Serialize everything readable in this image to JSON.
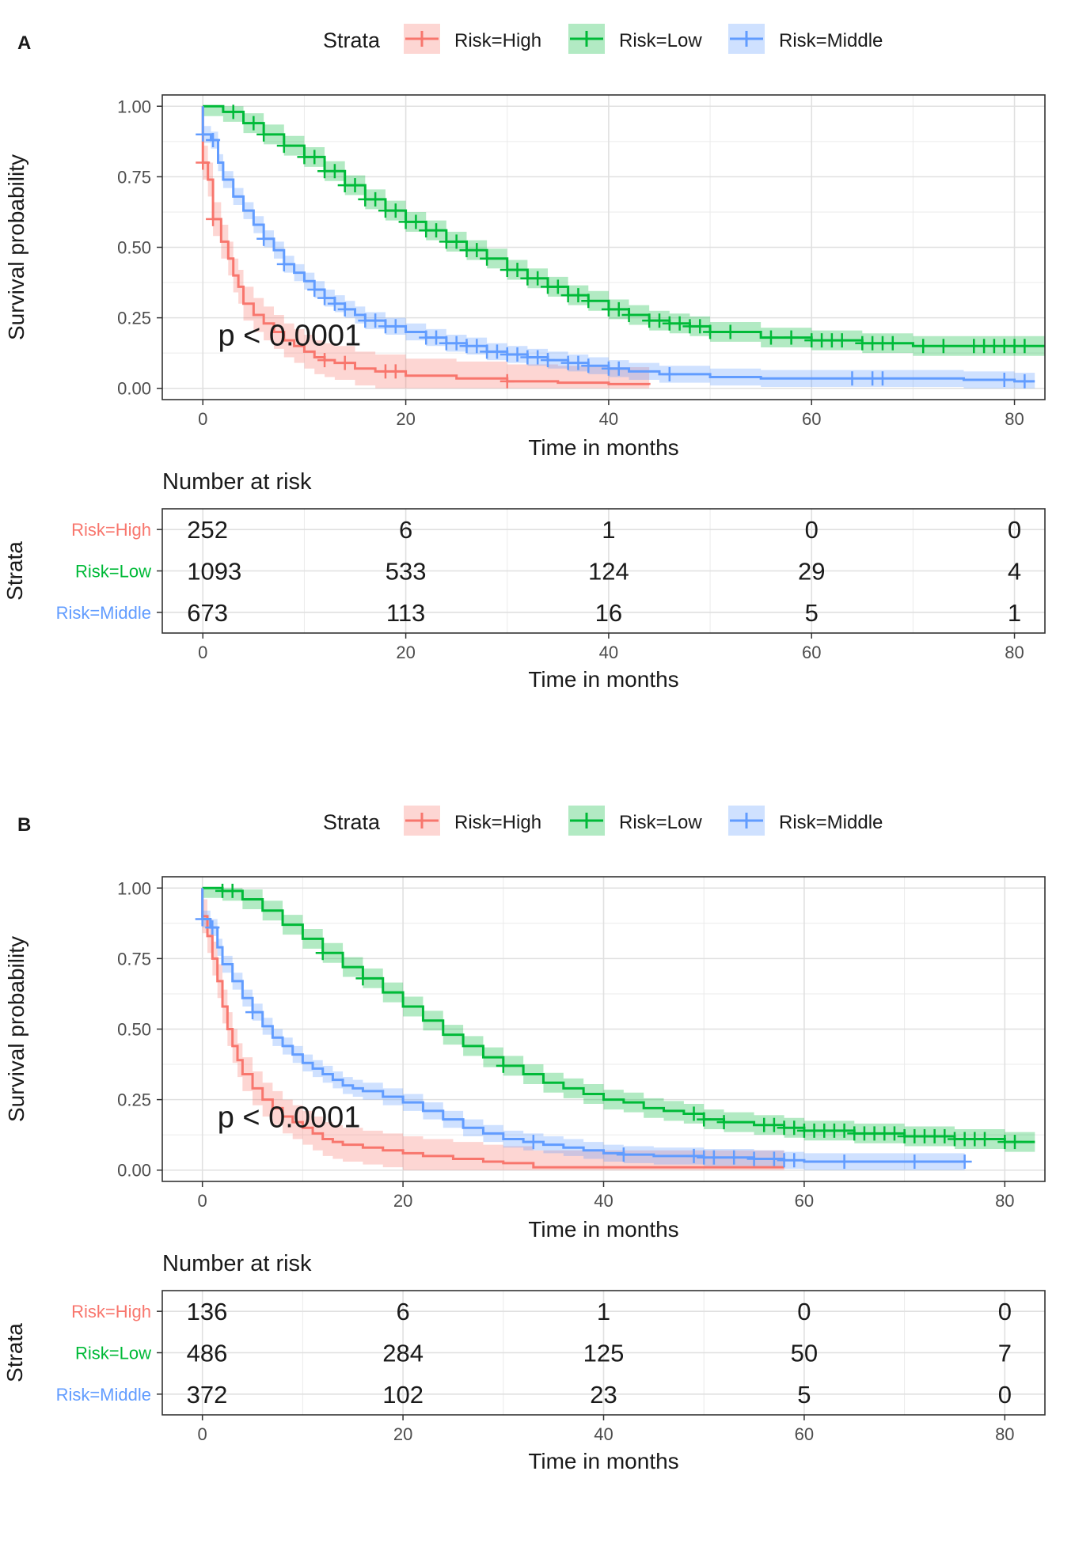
{
  "colors": {
    "high": "#F8766D",
    "low": "#00BA38",
    "middle": "#619CFF",
    "grid": "#E0E0E0",
    "frame": "#333333",
    "text": "#1A1A1A",
    "tick": "#4D4D4D"
  },
  "chart_data": [
    {
      "type": "line",
      "panel_label": "A",
      "legend_title": "Strata",
      "legend_position": "top",
      "title": "",
      "xlabel": "Time in months",
      "ylabel": "Survival probability",
      "xlim": [
        -4,
        83
      ],
      "ylim": [
        -0.04,
        1.04
      ],
      "x_ticks": [
        0,
        20,
        40,
        60,
        80
      ],
      "x_tick_labels": [
        "0",
        "20",
        "40",
        "60",
        "80"
      ],
      "y_ticks": [
        0,
        0.25,
        0.5,
        0.75,
        1.0
      ],
      "y_tick_labels": [
        "0.00",
        "0.25",
        "0.50",
        "0.75",
        "1.00"
      ],
      "annotation": "p < 0.0001",
      "annotation_pos": [
        1.5,
        0.18
      ],
      "series": [
        {
          "name": "Risk=High",
          "color_key": "high",
          "x": [
            0,
            0.5,
            1,
            1.8,
            2.5,
            3,
            3.5,
            4,
            5,
            6,
            7,
            8,
            9,
            10,
            11,
            12,
            13,
            15,
            17,
            20,
            25,
            30,
            35,
            40,
            44
          ],
          "y": [
            0.8,
            0.74,
            0.6,
            0.52,
            0.46,
            0.4,
            0.36,
            0.3,
            0.26,
            0.23,
            0.2,
            0.17,
            0.15,
            0.13,
            0.11,
            0.1,
            0.09,
            0.07,
            0.06,
            0.045,
            0.035,
            0.025,
            0.02,
            0.015,
            0.012
          ],
          "censor_x": [
            0,
            1,
            12,
            14,
            18,
            19,
            30
          ],
          "band": 0.06
        },
        {
          "name": "Risk=Low",
          "color_key": "low",
          "x": [
            0,
            2,
            4,
            6,
            8,
            10,
            12,
            14,
            16,
            18,
            20,
            22,
            24,
            26,
            28,
            30,
            32,
            34,
            36,
            38,
            40,
            42,
            44,
            46,
            48,
            50,
            55,
            60,
            65,
            70,
            75,
            80,
            83
          ],
          "y": [
            1.0,
            0.98,
            0.94,
            0.9,
            0.86,
            0.82,
            0.77,
            0.72,
            0.67,
            0.63,
            0.59,
            0.56,
            0.52,
            0.49,
            0.46,
            0.42,
            0.39,
            0.36,
            0.33,
            0.31,
            0.28,
            0.26,
            0.24,
            0.23,
            0.22,
            0.2,
            0.18,
            0.17,
            0.16,
            0.15,
            0.15,
            0.15,
            0.15
          ],
          "censor_x": [
            3,
            5,
            6,
            8,
            10,
            11,
            12,
            13,
            14,
            15,
            16,
            17,
            18,
            19,
            20,
            21,
            22,
            23,
            24,
            25,
            26,
            27,
            28,
            30,
            31,
            32,
            33,
            34,
            35,
            36,
            37,
            38,
            40,
            41,
            42,
            44,
            45,
            46,
            47,
            48,
            49,
            50,
            52,
            56,
            58,
            60,
            61,
            62,
            63,
            65,
            66,
            67,
            68,
            71,
            73,
            76,
            77,
            78,
            79,
            80,
            81
          ],
          "band": 0.035
        },
        {
          "name": "Risk=Middle",
          "color_key": "middle",
          "x": [
            0,
            0.8,
            1.5,
            2,
            3,
            4,
            5,
            6,
            7,
            8,
            9,
            10,
            11,
            12,
            13,
            14,
            15,
            16,
            18,
            20,
            22,
            24,
            26,
            28,
            30,
            32,
            34,
            36,
            38,
            40,
            42,
            45,
            50,
            55,
            60,
            65,
            70,
            75,
            80,
            82
          ],
          "y": [
            0.9,
            0.88,
            0.8,
            0.74,
            0.68,
            0.63,
            0.58,
            0.53,
            0.49,
            0.44,
            0.41,
            0.38,
            0.35,
            0.32,
            0.3,
            0.28,
            0.26,
            0.24,
            0.22,
            0.2,
            0.18,
            0.16,
            0.15,
            0.13,
            0.12,
            0.11,
            0.1,
            0.09,
            0.08,
            0.07,
            0.06,
            0.05,
            0.04,
            0.035,
            0.035,
            0.035,
            0.035,
            0.03,
            0.025,
            0.025
          ],
          "censor_x": [
            0,
            1,
            6,
            8,
            11,
            12,
            13,
            14,
            16,
            17,
            18,
            19,
            22,
            23,
            24,
            25,
            26,
            27,
            28,
            29,
            30,
            31,
            32,
            33,
            34,
            36,
            37,
            38,
            40,
            41,
            46,
            64,
            66,
            67,
            79,
            81
          ],
          "band": 0.03
        }
      ],
      "risk_table": {
        "title": "Number at risk",
        "ylabel": "Strata",
        "xlabel": "Time in months",
        "times": [
          0,
          20,
          40,
          60,
          80
        ],
        "time_labels": [
          "0",
          "20",
          "40",
          "60",
          "80"
        ],
        "rows": [
          {
            "name": "Risk=High",
            "color_key": "high",
            "values": [
              "252",
              "6",
              "1",
              "0",
              "0"
            ]
          },
          {
            "name": "Risk=Low",
            "color_key": "low",
            "values": [
              "1093",
              "533",
              "124",
              "29",
              "4"
            ]
          },
          {
            "name": "Risk=Middle",
            "color_key": "middle",
            "values": [
              "673",
              "113",
              "16",
              "5",
              "1"
            ]
          }
        ]
      }
    },
    {
      "type": "line",
      "panel_label": "B",
      "legend_title": "Strata",
      "legend_position": "top",
      "title": "",
      "xlabel": "Time in months",
      "ylabel": "Survival probability",
      "xlim": [
        -4,
        84
      ],
      "ylim": [
        -0.04,
        1.04
      ],
      "x_ticks": [
        0,
        20,
        40,
        60,
        80
      ],
      "x_tick_labels": [
        "0",
        "20",
        "40",
        "60",
        "80"
      ],
      "y_ticks": [
        0,
        0.25,
        0.5,
        0.75,
        1.0
      ],
      "y_tick_labels": [
        "0.00",
        "0.25",
        "0.50",
        "0.75",
        "1.00"
      ],
      "annotation": "p < 0.0001",
      "annotation_pos": [
        1.5,
        0.18
      ],
      "series": [
        {
          "name": "Risk=High",
          "color_key": "high",
          "x": [
            0,
            0.5,
            1,
            1.5,
            2,
            2.5,
            3,
            3.5,
            4,
            5,
            6,
            7,
            8,
            9,
            10,
            11,
            12,
            13,
            14,
            16,
            18,
            20,
            22,
            25,
            28,
            30,
            33,
            40,
            50,
            58
          ],
          "y": [
            0.9,
            0.83,
            0.75,
            0.67,
            0.58,
            0.5,
            0.44,
            0.39,
            0.34,
            0.29,
            0.25,
            0.22,
            0.19,
            0.17,
            0.15,
            0.13,
            0.11,
            0.1,
            0.09,
            0.08,
            0.07,
            0.06,
            0.05,
            0.04,
            0.03,
            0.025,
            0.01,
            0.01,
            0.01,
            0.01
          ],
          "censor_x": [],
          "band": 0.06
        },
        {
          "name": "Risk=Low",
          "color_key": "low",
          "x": [
            0,
            2,
            4,
            6,
            8,
            10,
            12,
            14,
            16,
            18,
            20,
            22,
            24,
            26,
            28,
            30,
            32,
            34,
            36,
            38,
            40,
            42,
            44,
            46,
            48,
            50,
            52,
            55,
            58,
            60,
            65,
            70,
            75,
            80,
            83
          ],
          "y": [
            1.0,
            0.99,
            0.96,
            0.92,
            0.87,
            0.82,
            0.77,
            0.72,
            0.68,
            0.63,
            0.58,
            0.53,
            0.48,
            0.44,
            0.4,
            0.37,
            0.34,
            0.31,
            0.29,
            0.27,
            0.25,
            0.24,
            0.22,
            0.21,
            0.2,
            0.18,
            0.17,
            0.16,
            0.15,
            0.14,
            0.13,
            0.12,
            0.11,
            0.1,
            0.1
          ],
          "censor_x": [
            2,
            3,
            12,
            16,
            30,
            49,
            50,
            52,
            56,
            57,
            58,
            59,
            60,
            61,
            62,
            63,
            64,
            65,
            66,
            67,
            68,
            69,
            70,
            71,
            72,
            73,
            74,
            75,
            76,
            77,
            78,
            80,
            81
          ],
          "band": 0.035
        },
        {
          "name": "Risk=Middle",
          "color_key": "middle",
          "x": [
            0,
            0.8,
            1.5,
            2,
            3,
            4,
            5,
            6,
            7,
            8,
            9,
            10,
            11,
            12,
            13,
            14,
            15,
            16,
            18,
            20,
            22,
            24,
            26,
            28,
            30,
            32,
            34,
            36,
            38,
            40,
            42,
            45,
            50,
            55,
            58,
            60,
            65,
            70,
            76
          ],
          "y": [
            0.89,
            0.86,
            0.79,
            0.73,
            0.67,
            0.61,
            0.56,
            0.51,
            0.47,
            0.44,
            0.41,
            0.38,
            0.36,
            0.34,
            0.32,
            0.3,
            0.29,
            0.28,
            0.26,
            0.24,
            0.21,
            0.18,
            0.15,
            0.13,
            0.11,
            0.1,
            0.09,
            0.08,
            0.07,
            0.06,
            0.055,
            0.05,
            0.045,
            0.04,
            0.035,
            0.03,
            0.03,
            0.03,
            0.03
          ],
          "censor_x": [
            0,
            1,
            5,
            33,
            42,
            49,
            50,
            51,
            53,
            55,
            57,
            58,
            59,
            64,
            71,
            76
          ],
          "band": 0.03
        }
      ],
      "risk_table": {
        "title": "Number at risk",
        "ylabel": "Strata",
        "xlabel": "Time in months",
        "times": [
          0,
          20,
          40,
          60,
          80
        ],
        "time_labels": [
          "0",
          "20",
          "40",
          "60",
          "80"
        ],
        "rows": [
          {
            "name": "Risk=High",
            "color_key": "high",
            "values": [
              "136",
              "6",
              "1",
              "0",
              "0"
            ]
          },
          {
            "name": "Risk=Low",
            "color_key": "low",
            "values": [
              "486",
              "284",
              "125",
              "50",
              "7"
            ]
          },
          {
            "name": "Risk=Middle",
            "color_key": "middle",
            "values": [
              "372",
              "102",
              "23",
              "5",
              "0"
            ]
          }
        ]
      }
    }
  ]
}
